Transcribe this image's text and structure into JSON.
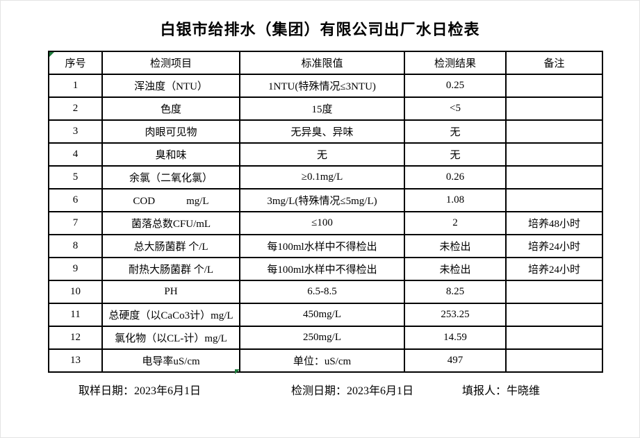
{
  "title": "白银市给排水（集团）有限公司出厂水日检表",
  "flag_color": "#1e7b3c",
  "table": {
    "headers": [
      "序号",
      "检测项目",
      "标准限值",
      "检测结果",
      "备注"
    ],
    "rows": [
      [
        "1",
        "浑浊度（NTU）",
        "1NTU(特殊情况≤3NTU)",
        "0.25",
        ""
      ],
      [
        "2",
        "色度",
        "15度",
        "<5",
        ""
      ],
      [
        "3",
        "肉眼可见物",
        "无异臭、异味",
        "无",
        ""
      ],
      [
        "4",
        "臭和味",
        "无",
        "无",
        ""
      ],
      [
        "5",
        "余氯（二氧化氯）",
        "≥0.1mg/L",
        "0.26",
        ""
      ],
      [
        "6",
        "COD　　　mg/L",
        "3mg/L(特殊情况≤5mg/L)",
        "1.08",
        ""
      ],
      [
        "7",
        "菌落总数CFU/mL",
        "≤100",
        "2",
        "培养48小时"
      ],
      [
        "8",
        "总大肠菌群 个/L",
        "每100ml水样中不得检出",
        "未检出",
        "培养24小时"
      ],
      [
        "9",
        "耐热大肠菌群 个/L",
        "每100ml水样中不得检出",
        "未检出",
        "培养24小时"
      ],
      [
        "10",
        "PH",
        "6.5-8.5",
        "8.25",
        ""
      ],
      [
        "11",
        "总硬度（以CaCo3计）mg/L",
        "450mg/L",
        "253.25",
        ""
      ],
      [
        "12",
        "氯化物（以CL-计）mg/L",
        "250mg/L",
        "14.59",
        ""
      ],
      [
        "13",
        "电导率uS/cm",
        "单位：uS/cm",
        "497",
        ""
      ]
    ]
  },
  "footer": {
    "sample_date": "取样日期：2023年6月1日",
    "test_date": "检测日期：2023年6月1日",
    "reporter": "填报人：牛晓维"
  }
}
